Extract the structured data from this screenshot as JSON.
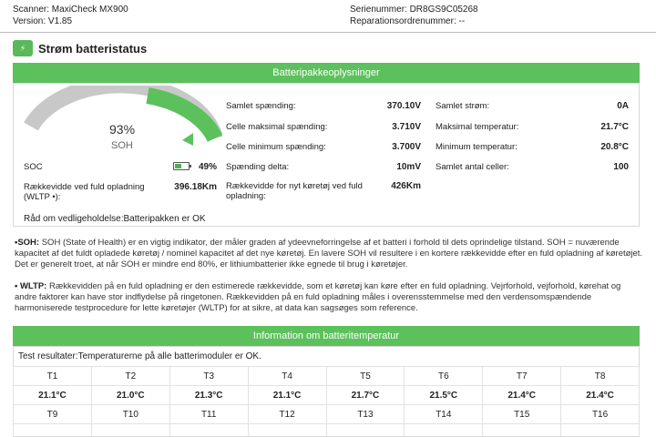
{
  "header": {
    "scanner": "Scanner: MaxiCheck MX900",
    "version": "Version: V1.85",
    "serial": "Serienummer: DR8GS9C05268",
    "repair_order": "Reparationsordrenummer: --"
  },
  "section_title": "Strøm batteristatus",
  "pack_info": {
    "bar_title": "Batteripakkeoplysninger",
    "gauge": {
      "percent": "93%",
      "label": "SOH",
      "level": 0.93
    },
    "soc": {
      "label": "SOC",
      "value": "49%",
      "level": 0.49
    },
    "range_full": {
      "label": "Rækkevidde ved fuld opladning (WLTP •):",
      "value": "396.18Km"
    },
    "advice": "Råd om vedligeholdelse:Batteripakken er OK",
    "mid": [
      {
        "label": "Samlet spænding:",
        "value": "370.10V"
      },
      {
        "label": "Celle maksimal spænding:",
        "value": "3.710V"
      },
      {
        "label": "Celle minimum spænding:",
        "value": "3.700V"
      },
      {
        "label": "Spænding delta:",
        "value": "10mV"
      },
      {
        "label": "Rækkevidde for nyt køretøj ved fuld opladning:",
        "value": "426Km"
      }
    ],
    "right": [
      {
        "label": "Samlet strøm:",
        "value": "0A"
      },
      {
        "label": "Maksimal temperatur:",
        "value": "21.7°C"
      },
      {
        "label": "Minimum temperatur:",
        "value": "20.8°C"
      },
      {
        "label": "Samlet antal celler:",
        "value": "100"
      }
    ]
  },
  "notes": {
    "soh_key": "•SOH:",
    "soh_text": " SOH (State of Health) er en vigtig indikator, der måler graden af ydeevneforringelse af et batteri i forhold til dets oprindelige tilstand. SOH = nuværende kapacitet af det fuldt opladede køretøj / nominel kapacitet af det nye køretøj. En lavere SOH vil resultere i en kortere rækkevidde efter en fuld opladning af køretøjet. Det er generelt troet, at når SOH er mindre end 80%, er lithiumbatterier ikke egnede til brug i køretøjer.",
    "wltp_key": "• WLTP:",
    "wltp_text": " Rækkevidden på en fuld opladning er den estimerede rækkevidde, som et køretøj kan køre efter en fuld opladning. Vejrforhold, vejforhold, kørehat og andre faktorer kan have stor indflydelse på ringetonen. Rækkevidden på en fuld opladning måles i overensstemmelse med den verdensomspændende harmoniserede testprocedure for lette køretøjer (WLTP) for at sikre, at data kan sagsøges som reference."
  },
  "temp_info": {
    "bar_title": "Information om batteritemperatur",
    "test_result": "Test resultater:Temperaturerne på alle batterimoduler er OK.",
    "row1_labels": [
      "T1",
      "T2",
      "T3",
      "T4",
      "T5",
      "T6",
      "T7",
      "T8"
    ],
    "row1_values": [
      "21.1°C",
      "21.0°C",
      "21.3°C",
      "21.1°C",
      "21.7°C",
      "21.5°C",
      "21.4°C",
      "21.4°C"
    ],
    "row2_labels": [
      "T9",
      "T10",
      "T11",
      "T12",
      "T13",
      "T14",
      "T15",
      "T16"
    ]
  },
  "colors": {
    "accent": "#5cc15c",
    "gauge_track": "#c8c8c8"
  }
}
